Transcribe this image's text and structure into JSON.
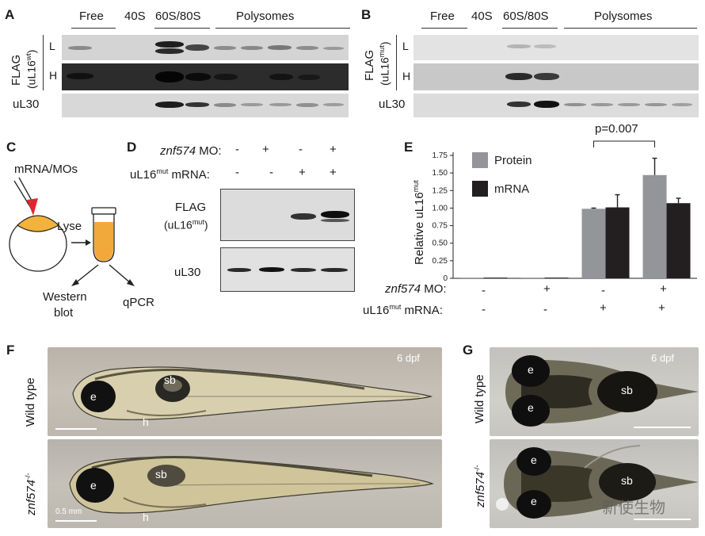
{
  "panels": {
    "A": {
      "letter": "A",
      "fractions": [
        "Free",
        "40S",
        "60S/80S",
        "Polysomes"
      ],
      "flag_label": "FLAG",
      "construct_prefix": "(uL16",
      "construct_sup": "wt",
      "construct_suffix": ")",
      "lanes": [
        "L",
        "H"
      ],
      "loading_label": "uL30"
    },
    "B": {
      "letter": "B",
      "fractions": [
        "Free",
        "40S",
        "60S/80S",
        "Polysomes"
      ],
      "flag_label": "FLAG",
      "construct_prefix": "(uL16",
      "construct_sup": "mut",
      "construct_suffix": ")",
      "lanes": [
        "L",
        "H"
      ],
      "loading_label": "uL30"
    },
    "C": {
      "letter": "C",
      "inject": "mRNA/MOs",
      "lyse": "Lyse",
      "western_1": "Western",
      "western_2": "blot",
      "qpcr": "qPCR"
    },
    "D": {
      "letter": "D",
      "mo_gene": "znf574",
      "mo_suffix": " MO:",
      "mrna_prefix": "uL16",
      "mrna_sup": "mut",
      "mrna_suffix": " mRNA:",
      "mo_signs": [
        "-",
        "+",
        "-",
        "+"
      ],
      "mrna_signs": [
        "-",
        "-",
        "+",
        "+"
      ],
      "flag_label": "FLAG",
      "flag_construct_prefix": "(uL16",
      "flag_construct_sup": "mut",
      "flag_construct_suffix": ")",
      "loading_label": "uL30"
    },
    "E": {
      "letter": "E",
      "pvalue": "p=0.007",
      "mo_gene": "znf574",
      "mo_suffix": " MO:",
      "mrna_prefix": "uL16",
      "mrna_sup": "mut",
      "mrna_suffix": " mRNA:",
      "mo_signs": [
        "-",
        "+",
        "-",
        "+"
      ],
      "mrna_signs": [
        "-",
        "-",
        "+",
        "+"
      ]
    },
    "F": {
      "letter": "F",
      "row1_label": "Wild type",
      "row2_label_gene": "znf574",
      "row2_label_sup": "-/-",
      "stage": "6 dpf",
      "eye": "e",
      "swim_bladder": "sb",
      "heart": "h",
      "scale": "0.5 mm"
    },
    "G": {
      "letter": "G",
      "row1_label": "Wild type",
      "row2_label_gene": "znf574",
      "row2_label_sup": "-/-",
      "stage": "6 dpf",
      "eye": "e",
      "swim_bladder": "sb"
    },
    "watermark": "新使生物"
  },
  "chart_data": {
    "type": "bar",
    "categories": [
      "1",
      "2",
      "3",
      "4"
    ],
    "series": [
      {
        "name": "Protein",
        "values": [
          0.0,
          0.0,
          0.99,
          1.47
        ],
        "errors": [
          0.0,
          0.0,
          0.01,
          0.24
        ],
        "color": "#939598"
      },
      {
        "name": "mRNA",
        "values": [
          0.01,
          0.01,
          1.01,
          1.07
        ],
        "errors": [
          0.0,
          0.0,
          0.18,
          0.07
        ],
        "color": "#231f20"
      }
    ],
    "ylabel_prefix": "Relative uL16",
    "ylabel_sup": "mut",
    "yticks": [
      "0",
      "0.25",
      "0.50",
      "0.75",
      "1.00",
      "1.25",
      "1.50",
      "1.75"
    ],
    "ylim": [
      0,
      1.75
    ],
    "legend_position": "top-left"
  }
}
